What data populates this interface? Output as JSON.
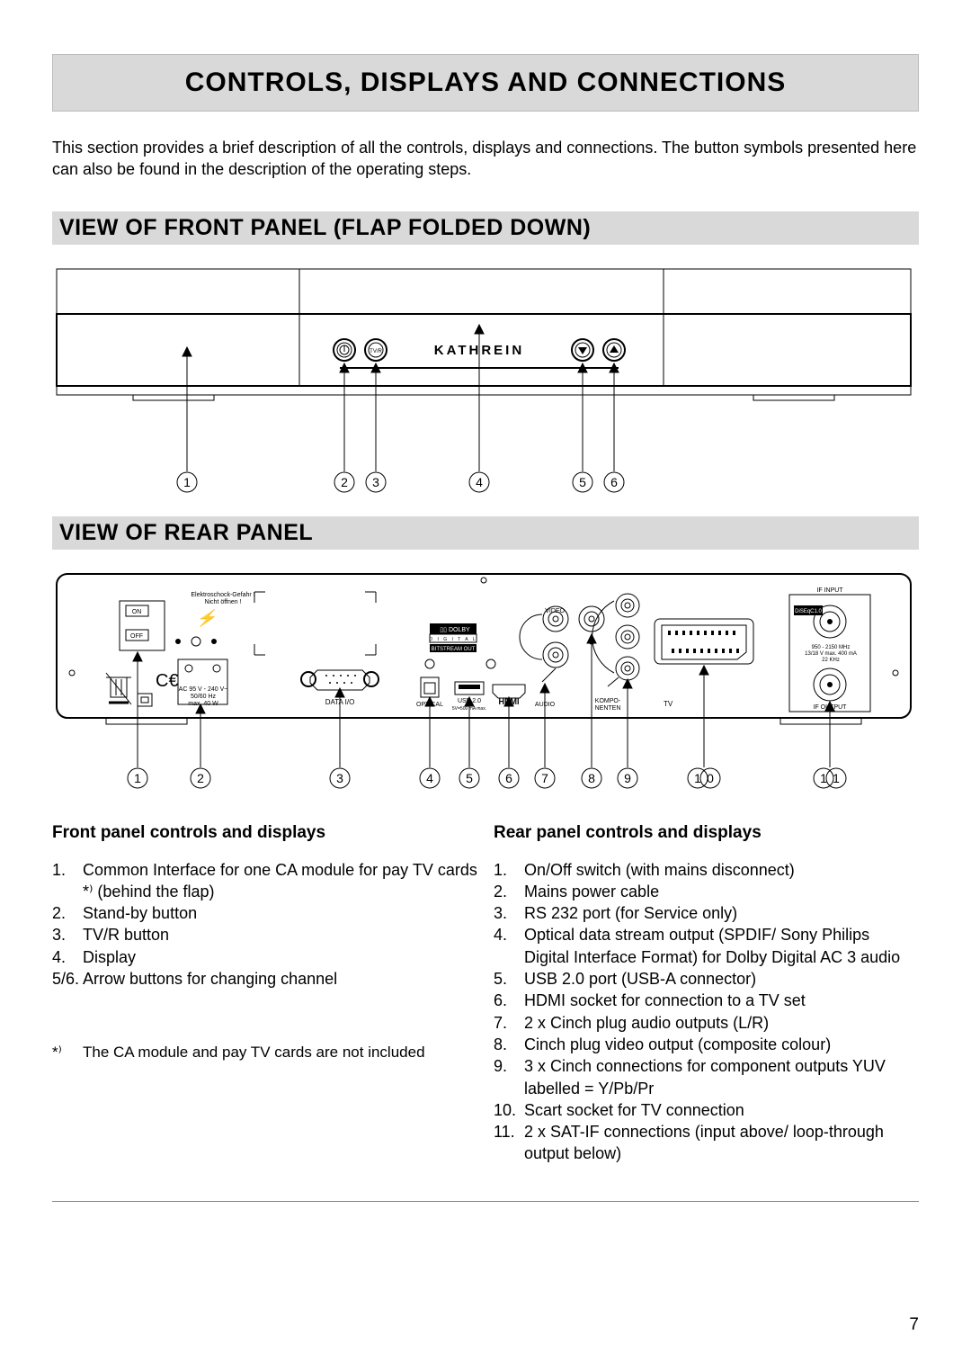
{
  "page": {
    "title": "CONTROLS, DISPLAYS AND CONNECTIONS",
    "intro": "This section provides a brief description of all the controls, displays and connections. The button symbols presented here can also be found in the description of the operating steps.",
    "page_number": "7"
  },
  "front_section": {
    "heading": "VIEW OF FRONT PANEL (FLAP FOLDED DOWN)",
    "brand": "KATHREIN",
    "buttons": {
      "power_icon": "⏻",
      "tvr_label": "TV/R"
    },
    "callouts": [
      "1",
      "2",
      "3",
      "4",
      "5",
      "6"
    ]
  },
  "rear_section": {
    "heading": "VIEW OF REAR PANEL",
    "labels": {
      "on": "ON",
      "off": "OFF",
      "warn1": "Elektroschock-Gefahr !",
      "warn2": "Nicht öffnen !",
      "ac1": "AC 95 V - 240 V~",
      "ac2": "50/60 Hz",
      "ac3": "max. 40 W",
      "data": "DATA I/O",
      "dolby1": "DOLBY",
      "dolby2": "D I G I T A L",
      "bitstream": "BITSTREAM OUT",
      "optical": "OPTICAL",
      "usb1": "USB 2.0",
      "usb2": "5V=500 mA max.",
      "hdmi": "HDMI",
      "audio": "AUDIO",
      "video": "VIDEO",
      "kompo1": "KOMPO-",
      "kompo2": "NENTEN",
      "tv": "TV",
      "diseqc": "DiSEqC1.0",
      "ifin": "IF INPUT",
      "ifout": "IF OUTPUT",
      "spec1": "950 - 2150 MHz",
      "spec2": "13/18 V max. 400 mA",
      "spec3": "22 KHz"
    },
    "callouts": [
      "1",
      "2",
      "3",
      "4",
      "5",
      "6",
      "7",
      "8",
      "9",
      "10",
      "11"
    ]
  },
  "lists": {
    "front_head": "Front panel controls and displays",
    "rear_head": "Rear panel controls and displays",
    "front": [
      {
        "n": "1.",
        "t": "Common Interface for one CA module for pay TV cards *⁾ (behind the flap)"
      },
      {
        "n": "2.",
        "t": "Stand-by button"
      },
      {
        "n": "3.",
        "t": "TV/R button"
      },
      {
        "n": "4.",
        "t": "Display"
      },
      {
        "n": "5/6.",
        "t": "Arrow buttons for changing channel"
      }
    ],
    "rear": [
      {
        "n": "1.",
        "t": "On/Off switch (with mains disconnect)"
      },
      {
        "n": "2.",
        "t": "Mains power cable"
      },
      {
        "n": "3.",
        "t": "RS 232 port (for Service only)"
      },
      {
        "n": "4.",
        "t": "Optical data stream output (SPDIF/ Sony Philips Digital Interface Format) for Dolby Digital AC 3 audio"
      },
      {
        "n": "5.",
        "t": "USB 2.0 port (USB-A connector)"
      },
      {
        "n": "6.",
        "t": "HDMI socket for connection to a TV set"
      },
      {
        "n": "7.",
        "t": "2 x Cinch plug audio outputs (L/R)"
      },
      {
        "n": "8.",
        "t": "Cinch plug video output (composite colour)"
      },
      {
        "n": "9.",
        "t": "3 x Cinch connections for component outputs YUV labelled = Y/Pb/Pr"
      },
      {
        "n": "10.",
        "t": "Scart socket for TV connection"
      },
      {
        "n": "11.",
        "t": "2 x SAT-IF connections (input above/ loop-through output below)"
      }
    ],
    "footnote_mark": "*⁾",
    "footnote": "The CA module and pay TV cards are not included"
  },
  "style": {
    "banner_bg": "#d9d9d9",
    "line": "#000",
    "text": "#000"
  }
}
